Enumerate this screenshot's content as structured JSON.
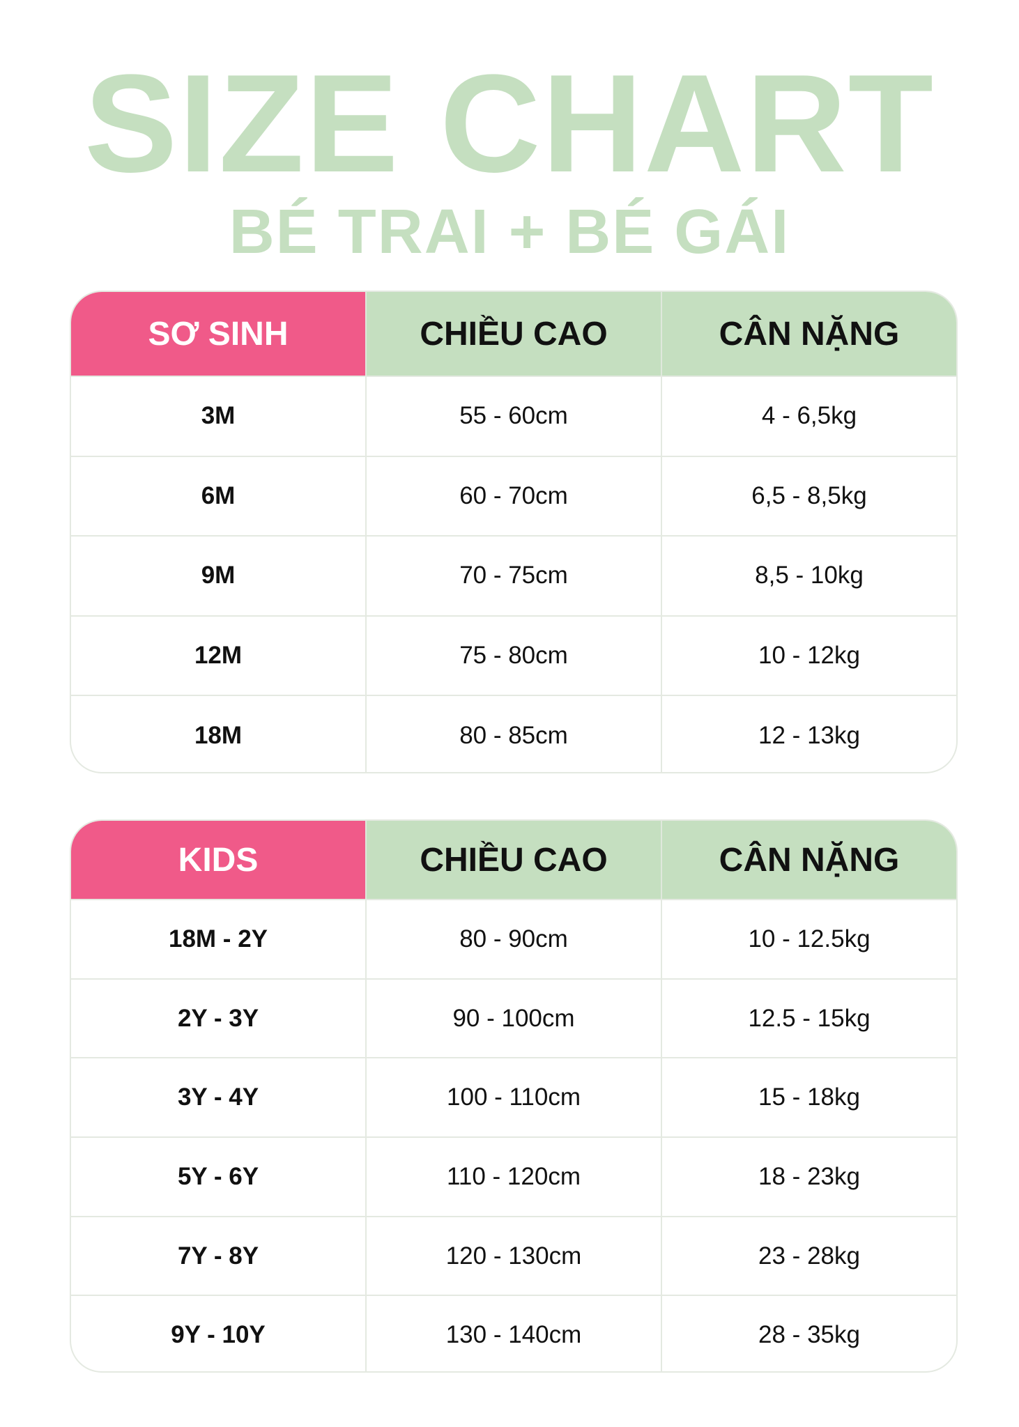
{
  "title": "SIZE CHART",
  "subtitle": "BÉ TRAI + BÉ GÁI",
  "colors": {
    "accent_pink": "#F05A89",
    "accent_green": "#C5DFC0"
  },
  "tables": [
    {
      "headers": [
        "SƠ SINH",
        "CHIỀU CAO",
        "CÂN NẶNG"
      ],
      "rows": [
        [
          "3M",
          "55 - 60cm",
          "4 - 6,5kg"
        ],
        [
          "6M",
          "60 - 70cm",
          "6,5 - 8,5kg"
        ],
        [
          "9M",
          "70 - 75cm",
          "8,5 - 10kg"
        ],
        [
          "12M",
          "75 - 80cm",
          "10 - 12kg"
        ],
        [
          "18M",
          "80 - 85cm",
          "12 - 13kg"
        ]
      ]
    },
    {
      "headers": [
        "KIDS",
        "CHIỀU CAO",
        "CÂN NẶNG"
      ],
      "rows": [
        [
          "18M - 2Y",
          "80 - 90cm",
          "10 - 12.5kg"
        ],
        [
          "2Y - 3Y",
          "90 - 100cm",
          "12.5 - 15kg"
        ],
        [
          "3Y - 4Y",
          "100 - 110cm",
          "15 - 18kg"
        ],
        [
          "5Y - 6Y",
          "110 - 120cm",
          "18 - 23kg"
        ],
        [
          "7Y - 8Y",
          "120 - 130cm",
          "23 - 28kg"
        ],
        [
          "9Y - 10Y",
          "130 - 140cm",
          "28 - 35kg"
        ]
      ]
    }
  ]
}
